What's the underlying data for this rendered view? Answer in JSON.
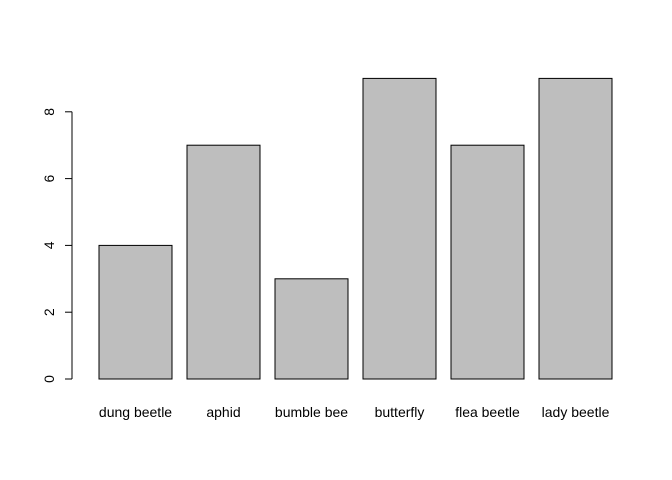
{
  "chart_data": {
    "type": "bar",
    "categories": [
      "dung beetle",
      "aphid",
      "bumble bee",
      "butterfly",
      "flea beetle",
      "lady beetle"
    ],
    "values": [
      4,
      7,
      3,
      9,
      7,
      9
    ],
    "title": "",
    "xlabel": "",
    "ylabel": "",
    "ylim": [
      0,
      9
    ],
    "yticks": [
      0,
      2,
      4,
      6,
      8
    ],
    "ytick_labels": [
      "0",
      "2",
      "4",
      "6",
      "8"
    ],
    "grid": false,
    "legend": "none",
    "bar_color": "#bebebe",
    "bar_edge_color": "#000000"
  }
}
